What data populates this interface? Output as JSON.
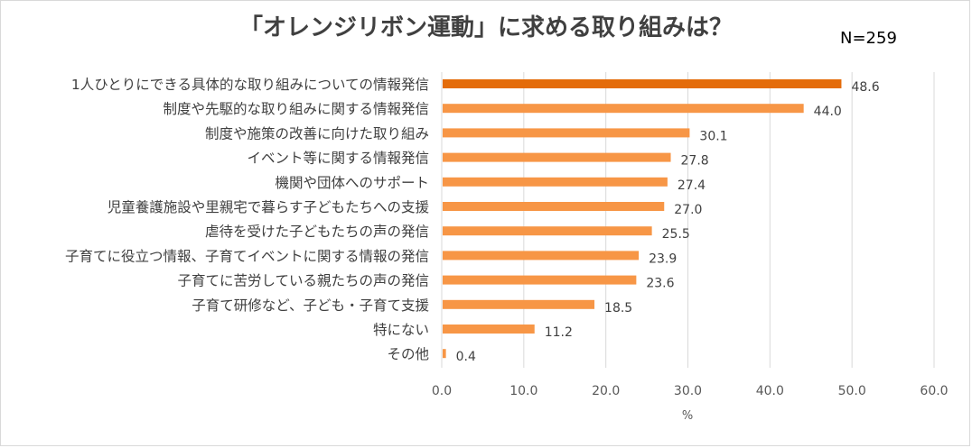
{
  "chart_data": {
    "type": "bar",
    "orientation": "horizontal",
    "title": "「オレンジリボン運動」に求める取り組みは？",
    "sample_size_label": "N=259",
    "xlabel": "%",
    "xlim": [
      0,
      60
    ],
    "xticks": [
      "0.0",
      "10.0",
      "20.0",
      "30.0",
      "40.0",
      "50.0",
      "60.0"
    ],
    "grid": "vertical",
    "categories": [
      "1人ひとりにできる具体的な取り組みについての情報発信",
      "制度や先駆的な取り組みに関する情報発信",
      "制度や施策の改善に向けた取り組み",
      "イベント等に関する情報発信",
      "機関や団体へのサポート",
      "児童養護施設や里親宅で暮らす子どもたちへの支援",
      "虐待を受けた子どもたちの声の発信",
      "子育てに役立つ情報、子育てイベントに関する情報の発信",
      "子育てに苦労している親たちの声の発信",
      "子育て研修など、子ども・子育て支援",
      "特にない",
      "その他"
    ],
    "values": [
      48.6,
      44.0,
      30.1,
      27.8,
      27.4,
      27.0,
      25.5,
      23.9,
      23.6,
      18.5,
      11.2,
      0.4
    ],
    "value_labels": [
      "48.6",
      "44.0",
      "30.1",
      "27.8",
      "27.4",
      "27.0",
      "25.5",
      "23.9",
      "23.6",
      "18.5",
      "11.2",
      "0.4"
    ],
    "colors": {
      "highlight": "#e46c0a",
      "bar": "#f79646",
      "grid": "#d9d9d9"
    },
    "highlight_index": 0
  }
}
